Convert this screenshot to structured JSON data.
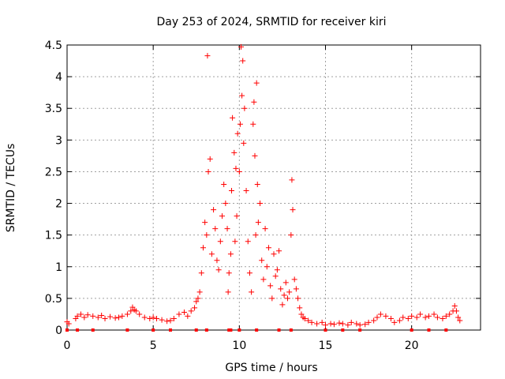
{
  "chart_data": {
    "type": "scatter",
    "title": "Day 253 of 2024, SRMTID for receiver kiri",
    "xlabel": "GPS time / hours",
    "ylabel": "SRMTID / TECUs",
    "xlim": [
      0,
      24
    ],
    "ylim": [
      0,
      4.5
    ],
    "xticks": [
      "0",
      "5",
      "10",
      "15",
      "20"
    ],
    "yticks": [
      "0",
      "0.5",
      "1",
      "1.5",
      "2",
      "2.5",
      "3",
      "3.5",
      "4",
      "4.5"
    ],
    "grid": true,
    "marker": "+",
    "color": "#ff0000",
    "series": [
      {
        "name": "SRMTID",
        "x": [
          0.0,
          0.1,
          0.5,
          0.6,
          0.8,
          1.0,
          1.2,
          1.5,
          1.8,
          2.0,
          2.2,
          2.5,
          2.8,
          3.0,
          3.2,
          3.5,
          3.7,
          3.8,
          3.9,
          4.0,
          4.2,
          4.5,
          4.8,
          5.0,
          5.2,
          5.5,
          5.8,
          6.0,
          6.2,
          6.5,
          6.8,
          7.0,
          7.2,
          7.4,
          7.5,
          7.6,
          7.7,
          7.8,
          7.9,
          8.0,
          8.1,
          8.15,
          8.2,
          8.3,
          8.4,
          8.5,
          8.6,
          8.7,
          8.8,
          8.9,
          9.0,
          9.1,
          9.2,
          9.3,
          9.35,
          9.4,
          9.5,
          9.55,
          9.6,
          9.7,
          9.75,
          9.8,
          9.85,
          9.9,
          10.0,
          10.05,
          10.1,
          10.15,
          10.2,
          10.25,
          10.3,
          10.4,
          10.5,
          10.6,
          10.7,
          10.8,
          10.85,
          10.9,
          10.95,
          11.0,
          11.05,
          11.1,
          11.2,
          11.3,
          11.4,
          11.5,
          11.6,
          11.7,
          11.8,
          11.9,
          12.0,
          12.1,
          12.2,
          12.3,
          12.4,
          12.5,
          12.6,
          12.7,
          12.8,
          12.9,
          13.0,
          13.05,
          13.1,
          13.2,
          13.3,
          13.4,
          13.5,
          13.6,
          13.7,
          13.8,
          14.0,
          14.2,
          14.5,
          14.8,
          15.0,
          15.3,
          15.5,
          15.8,
          16.0,
          16.3,
          16.5,
          16.8,
          17.0,
          17.3,
          17.5,
          17.8,
          18.0,
          18.2,
          18.5,
          18.8,
          19.0,
          19.3,
          19.5,
          19.8,
          20.0,
          20.3,
          20.5,
          20.8,
          21.0,
          21.3,
          21.5,
          21.8,
          22.0,
          22.2,
          22.4,
          22.5,
          22.6,
          22.7,
          22.8
        ],
        "y": [
          0.13,
          0.1,
          0.18,
          0.22,
          0.25,
          0.2,
          0.24,
          0.22,
          0.2,
          0.23,
          0.18,
          0.21,
          0.19,
          0.2,
          0.22,
          0.25,
          0.3,
          0.36,
          0.32,
          0.3,
          0.25,
          0.2,
          0.18,
          0.2,
          0.18,
          0.16,
          0.14,
          0.15,
          0.18,
          0.25,
          0.28,
          0.22,
          0.3,
          0.35,
          0.45,
          0.5,
          0.6,
          0.9,
          1.3,
          1.7,
          1.5,
          4.33,
          2.5,
          2.7,
          1.2,
          1.9,
          1.6,
          1.1,
          0.95,
          1.4,
          1.8,
          2.3,
          2.0,
          1.6,
          0.6,
          0.9,
          1.2,
          2.2,
          3.35,
          2.8,
          1.4,
          2.55,
          1.8,
          3.1,
          2.5,
          3.25,
          4.47,
          3.7,
          4.25,
          2.95,
          3.5,
          2.2,
          1.4,
          0.9,
          0.6,
          3.25,
          3.6,
          2.75,
          1.5,
          3.9,
          2.3,
          1.7,
          2.0,
          1.1,
          0.8,
          1.6,
          1.0,
          1.3,
          0.7,
          0.5,
          1.2,
          0.85,
          0.95,
          1.25,
          0.65,
          0.4,
          0.55,
          0.75,
          0.5,
          0.6,
          1.5,
          2.37,
          1.9,
          0.8,
          0.65,
          0.5,
          0.35,
          0.25,
          0.2,
          0.18,
          0.15,
          0.12,
          0.1,
          0.12,
          0.08,
          0.1,
          0.09,
          0.11,
          0.1,
          0.08,
          0.12,
          0.1,
          0.08,
          0.09,
          0.12,
          0.15,
          0.2,
          0.25,
          0.22,
          0.18,
          0.12,
          0.15,
          0.2,
          0.18,
          0.22,
          0.2,
          0.25,
          0.2,
          0.22,
          0.25,
          0.2,
          0.18,
          0.22,
          0.25,
          0.3,
          0.38,
          0.3,
          0.2,
          0.15
        ],
        "bottom_marks_x": [
          0.0,
          0.6,
          1.5,
          3.5,
          5.0,
          6.0,
          7.5,
          8.1,
          9.4,
          9.5,
          10.0,
          11.0,
          12.3,
          13.0,
          15.0,
          16.0,
          17.0,
          20.0,
          21.0,
          22.0
        ]
      }
    ]
  }
}
